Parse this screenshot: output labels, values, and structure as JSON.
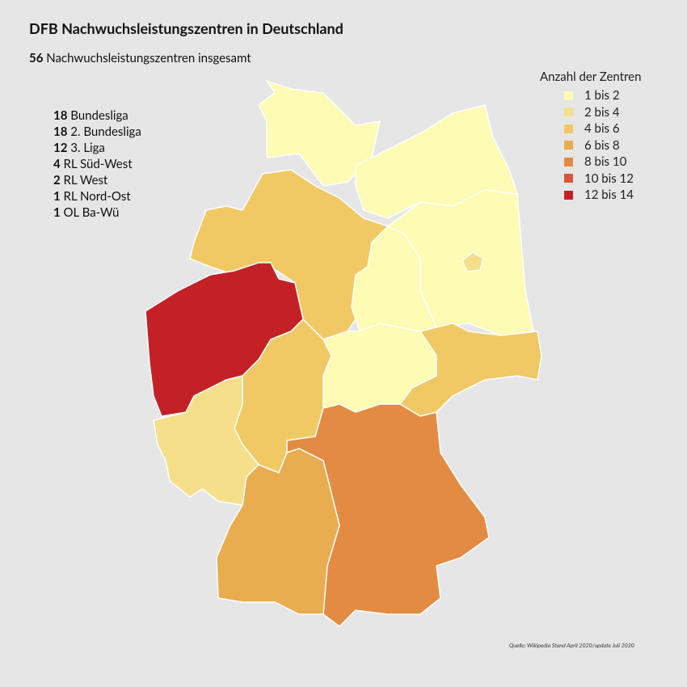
{
  "header": {
    "title": "DFB Nachwuchsleistungszentren in Deutschland",
    "subtitle": {
      "count": "56",
      "text": "Nachwuchsleistungszentren insgesamt"
    }
  },
  "leagues": [
    {
      "count": "18",
      "label": "Bundesliga"
    },
    {
      "count": "18",
      "label": "2. Bundesliga"
    },
    {
      "count": "12",
      "label": "3. Liga"
    },
    {
      "count": "4",
      "label": "RL Süd-West"
    },
    {
      "count": "2",
      "label": "RL West"
    },
    {
      "count": "1",
      "label": "RL Nord-Ost"
    },
    {
      "count": "1",
      "label": "OL Ba-Wü"
    }
  ],
  "legend": {
    "title": "Anzahl der Zentren",
    "items": [
      {
        "label": "1 bis 2",
        "color": "#fdfbb4"
      },
      {
        "label": "2 bis 4",
        "color": "#f5df8a"
      },
      {
        "label": "4 bis 6",
        "color": "#f0c965"
      },
      {
        "label": "6 bis 8",
        "color": "#e9ac4f"
      },
      {
        "label": "8 bis 10",
        "color": "#e38b42"
      },
      {
        "label": "10 bis 12",
        "color": "#d9563a"
      },
      {
        "label": "12 bis 14",
        "color": "#c42126"
      }
    ]
  },
  "source": "Quelle: Wikipedia Stand April 2020/update Juli 2020"
}
